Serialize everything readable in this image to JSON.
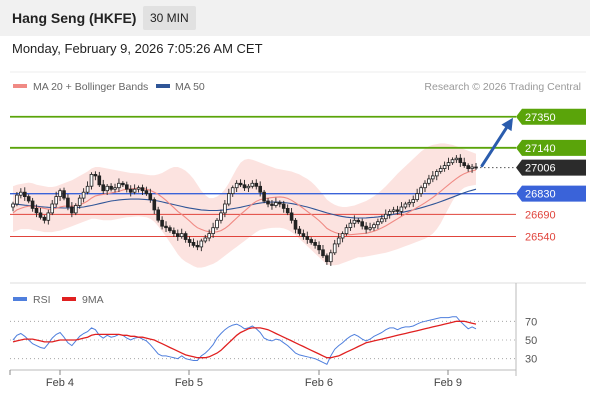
{
  "header": {
    "title": "Hang Seng (HKFE)",
    "timeframe": "30 MIN",
    "date": "Monday, February 9, 2026 7:05:26 AM CET",
    "copyright": "Research © 2026 Trading Central"
  },
  "colors": {
    "green": "#5aa40a",
    "blue": "#3a63d9",
    "red": "#e0443c",
    "ma20": "#f08a84",
    "ma50": "#2f5597",
    "band": "#fbd9d6",
    "rsi": "#4f7fdd",
    "rsi_ma": "#e02020",
    "arrow": "#2a5cad"
  },
  "chart_data": [
    {
      "type": "candlestick",
      "title": "Hang Seng (HKFE)",
      "timeframe": "30 MIN",
      "ylim": [
        26300,
        27450
      ],
      "x_ticks": [
        "Feb 4",
        "Feb 5",
        "Feb 6",
        "Feb 9"
      ],
      "legend": [
        {
          "name": "MA 20 + Bollinger Bands",
          "color": "#f08a84"
        },
        {
          "name": "MA 50",
          "color": "#2f5597"
        }
      ],
      "last_price": 27006,
      "levels": [
        {
          "label": "27350",
          "value": 27350,
          "kind": "target",
          "color": "#5aa40a"
        },
        {
          "label": "27140",
          "value": 27140,
          "kind": "resistance",
          "color": "#5aa40a"
        },
        {
          "label": "27006",
          "value": 27006,
          "kind": "last",
          "color": "#222222"
        },
        {
          "label": "26830",
          "value": 26830,
          "kind": "pivot",
          "color": "#3a63d9"
        },
        {
          "label": "26690",
          "value": 26690,
          "kind": "support",
          "color": "#e0443c"
        },
        {
          "label": "26540",
          "value": 26540,
          "kind": "support",
          "color": "#e0443c"
        }
      ],
      "close": [
        26760,
        26820,
        26840,
        26810,
        26780,
        26730,
        26700,
        26670,
        26650,
        26700,
        26760,
        26810,
        26850,
        26800,
        26740,
        26700,
        26750,
        26800,
        26840,
        26880,
        26960,
        26950,
        26890,
        26850,
        26880,
        26860,
        26870,
        26900,
        26890,
        26860,
        26840,
        26860,
        26870,
        26850,
        26830,
        26790,
        26720,
        26650,
        26610,
        26600,
        26580,
        26560,
        26540,
        26560,
        26520,
        26500,
        26480,
        26470,
        26510,
        26530,
        26560,
        26600,
        26650,
        26700,
        26760,
        26830,
        26870,
        26900,
        26890,
        26870,
        26880,
        26900,
        26880,
        26840,
        26780,
        26760,
        26750,
        26770,
        26760,
        26730,
        26700,
        26650,
        26590,
        26560,
        26540,
        26520,
        26500,
        26480,
        26450,
        26410,
        26370,
        26430,
        26490,
        26530,
        26560,
        26600,
        26630,
        26650,
        26640,
        26610,
        26590,
        26600,
        26620,
        26640,
        26660,
        26690,
        26710,
        26720,
        26710,
        26740,
        26760,
        26770,
        26790,
        26830,
        26870,
        26900,
        26930,
        26950,
        26980,
        27000,
        27020,
        27040,
        27060,
        27070,
        27040,
        27020,
        27000,
        27010,
        27006
      ],
      "ma20": [
        26700,
        26720,
        26730,
        26740,
        26745,
        26745,
        26740,
        26735,
        26730,
        26725,
        26725,
        26730,
        26740,
        26745,
        26745,
        26745,
        26750,
        26755,
        26765,
        26780,
        26800,
        26815,
        26820,
        26825,
        26830,
        26835,
        26840,
        26845,
        26855,
        26860,
        26862,
        26865,
        26866,
        26864,
        26860,
        26852,
        26840,
        26825,
        26806,
        26785,
        26760,
        26735,
        26710,
        26690,
        26668,
        26645,
        26620,
        26600,
        26588,
        26578,
        26572,
        26570,
        26572,
        26580,
        26595,
        26615,
        26640,
        26665,
        26690,
        26712,
        26735,
        26760,
        26778,
        26790,
        26795,
        26800,
        26803,
        26806,
        26808,
        26805,
        26798,
        26785,
        26768,
        26750,
        26730,
        26710,
        26690,
        26670,
        26648,
        26622,
        26595,
        26580,
        26568,
        26560,
        26555,
        26552,
        26552,
        26555,
        26558,
        26560,
        26562,
        26568,
        26576,
        26586,
        26598,
        26612,
        26628,
        26644,
        26660,
        26676,
        26692,
        26706,
        26720,
        26736,
        26752,
        26768,
        26786,
        26804,
        26824,
        26846,
        26868,
        26890,
        26912,
        26932,
        26950,
        26965,
        26976,
        26984,
        26990
      ],
      "bb_upper": [
        26880,
        26890,
        26895,
        26900,
        26905,
        26900,
        26890,
        26885,
        26880,
        26875,
        26875,
        26880,
        26890,
        26900,
        26910,
        26920,
        26935,
        26950,
        26965,
        26980,
        27000,
        27010,
        27010,
        27005,
        27000,
        26995,
        26990,
        26985,
        26980,
        26975,
        26970,
        26968,
        26966,
        26962,
        26958,
        26955,
        26955,
        26960,
        26970,
        26985,
        27000,
        27010,
        27010,
        27000,
        26985,
        26960,
        26930,
        26890,
        26850,
        26820,
        26800,
        26800,
        26810,
        26830,
        26860,
        26900,
        26950,
        27000,
        27040,
        27060,
        27065,
        27060,
        27050,
        27040,
        27030,
        27020,
        27010,
        27000,
        26995,
        26990,
        26985,
        26980,
        26970,
        26960,
        26945,
        26930,
        26910,
        26885,
        26855,
        26825,
        26790,
        26770,
        26755,
        26745,
        26740,
        26740,
        26745,
        26750,
        26760,
        26770,
        26780,
        26795,
        26812,
        26832,
        26855,
        26880,
        26908,
        26936,
        26965,
        26990,
        27015,
        27040,
        27065,
        27090,
        27115,
        27135,
        27150,
        27160,
        27165,
        27170,
        27170,
        27165,
        27160,
        27150,
        27140,
        27130,
        27120,
        27110,
        27100
      ],
      "bb_lower": [
        26570,
        26580,
        26590,
        26590,
        26590,
        26585,
        26580,
        26575,
        26570,
        26570,
        26570,
        26575,
        26580,
        26590,
        26600,
        26610,
        26620,
        26630,
        26640,
        26650,
        26660,
        26660,
        26655,
        26650,
        26650,
        26650,
        26655,
        26660,
        26665,
        26670,
        26672,
        26675,
        26676,
        26674,
        26670,
        26660,
        26640,
        26610,
        26575,
        26540,
        26500,
        26460,
        26420,
        26390,
        26370,
        26355,
        26340,
        26330,
        26330,
        26335,
        26345,
        26355,
        26370,
        26390,
        26410,
        26430,
        26450,
        26470,
        26490,
        26510,
        26530,
        26550,
        26570,
        26585,
        26590,
        26595,
        26598,
        26600,
        26600,
        26595,
        26585,
        26570,
        26550,
        26525,
        26500,
        26475,
        26450,
        26425,
        26400,
        26375,
        26350,
        26345,
        26345,
        26350,
        26360,
        26370,
        26380,
        26390,
        26400,
        26400,
        26405,
        26410,
        26415,
        26420,
        26425,
        26430,
        26438,
        26446,
        26455,
        26465,
        26475,
        26485,
        26495,
        26505,
        26515,
        26525,
        26540,
        26560,
        26590,
        26630,
        26680,
        26730,
        26780,
        26820,
        26850,
        26870,
        26880,
        26885,
        26890
      ],
      "ma50": [
        26760,
        26758,
        26755,
        26752,
        26750,
        26748,
        26745,
        26742,
        26740,
        26738,
        26736,
        26735,
        26734,
        26733,
        26733,
        26734,
        26736,
        26738,
        26740,
        26745,
        26750,
        26756,
        26762,
        26768,
        26774,
        26780,
        26784,
        26788,
        26790,
        26792,
        26793,
        26793,
        26793,
        26792,
        26790,
        26788,
        26784,
        26780,
        26774,
        26768,
        26762,
        26756,
        26750,
        26744,
        26738,
        26732,
        26728,
        26724,
        26720,
        26718,
        26716,
        26716,
        26716,
        26718,
        26720,
        26724,
        26728,
        26733,
        26738,
        26744,
        26750,
        26756,
        26762,
        26766,
        26770,
        26772,
        26773,
        26773,
        26772,
        26770,
        26767,
        26763,
        26758,
        26752,
        26746,
        26740,
        26732,
        26724,
        26716,
        26708,
        26700,
        26693,
        26686,
        26680,
        26675,
        26671,
        26668,
        26666,
        26665,
        26665,
        26666,
        26668,
        26670,
        26673,
        26676,
        26680,
        26685,
        26690,
        26696,
        26702,
        26708,
        26714,
        26720,
        26727,
        26734,
        26742,
        26750,
        26758,
        26767,
        26776,
        26786,
        26796,
        26806,
        26816,
        26826,
        26836,
        26845,
        26853,
        26860
      ]
    },
    {
      "type": "line",
      "title": "RSI",
      "ylim": [
        20,
        80
      ],
      "y_ticks": [
        30,
        50,
        70
      ],
      "legend": [
        {
          "name": "RSI",
          "color": "#4f7fdd"
        },
        {
          "name": "9MA",
          "color": "#e02020"
        }
      ],
      "series": [
        {
          "name": "RSI",
          "values": [
            50,
            55,
            57,
            54,
            50,
            46,
            44,
            42,
            41,
            46,
            52,
            56,
            58,
            53,
            47,
            44,
            49,
            54,
            57,
            59,
            63,
            61,
            55,
            52,
            55,
            53,
            54,
            56,
            55,
            52,
            50,
            52,
            53,
            51,
            49,
            45,
            40,
            35,
            33,
            33,
            32,
            31,
            30,
            33,
            30,
            29,
            28,
            28,
            33,
            36,
            40,
            45,
            52,
            57,
            61,
            64,
            66,
            67,
            65,
            62,
            63,
            65,
            62,
            58,
            52,
            50,
            49,
            51,
            50,
            47,
            44,
            40,
            36,
            34,
            33,
            32,
            31,
            30,
            28,
            26,
            24,
            33,
            40,
            44,
            47,
            51,
            54,
            56,
            54,
            51,
            49,
            51,
            54,
            56,
            58,
            61,
            63,
            63,
            61,
            63,
            64,
            64,
            65,
            67,
            69,
            70,
            71,
            72,
            73,
            74,
            74,
            74,
            75,
            75,
            70,
            66,
            62,
            64,
            62
          ]
        },
        {
          "name": "9MA",
          "values": [
            48,
            49,
            50,
            51,
            51,
            51,
            50,
            49,
            48,
            48,
            48,
            49,
            50,
            50,
            50,
            50,
            50,
            51,
            52,
            53,
            55,
            56,
            56,
            56,
            56,
            56,
            56,
            56,
            55,
            55,
            54,
            54,
            53,
            53,
            52,
            51,
            50,
            48,
            46,
            44,
            42,
            40,
            38,
            36,
            34,
            33,
            32,
            31,
            31,
            31,
            32,
            34,
            36,
            39,
            43,
            47,
            51,
            55,
            58,
            60,
            62,
            63,
            63,
            63,
            62,
            61,
            59,
            57,
            55,
            53,
            51,
            49,
            47,
            45,
            43,
            41,
            39,
            37,
            35,
            33,
            31,
            31,
            32,
            33,
            35,
            37,
            39,
            41,
            43,
            45,
            47,
            48,
            49,
            50,
            51,
            52,
            53,
            54,
            55,
            56,
            57,
            58,
            59,
            60,
            61,
            62,
            63,
            64,
            65,
            66,
            67,
            68,
            69,
            70,
            70,
            70,
            69,
            68,
            67
          ]
        }
      ]
    }
  ]
}
